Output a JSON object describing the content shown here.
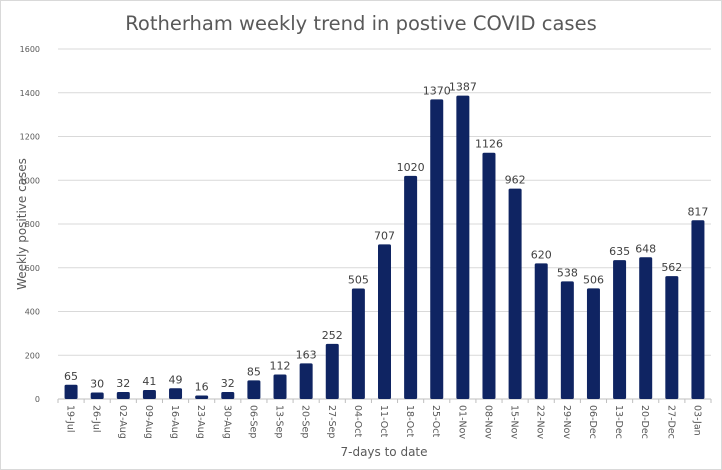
{
  "chart_data": {
    "type": "bar",
    "title": "Rotherham weekly trend in postive COVID cases",
    "xlabel": "7-days to date",
    "ylabel": "Weekly positive cases",
    "ylim": [
      0,
      1600
    ],
    "yticks": [
      0,
      200,
      400,
      600,
      800,
      1000,
      1200,
      1400,
      1600
    ],
    "grid": true,
    "legend": "none",
    "bar_color": "#0f2462",
    "categories": [
      "19-Jul",
      "26-Jul",
      "02-Aug",
      "09-Aug",
      "16-Aug",
      "23-Aug",
      "30-Aug",
      "06-Sep",
      "13-Sep",
      "20-Sep",
      "27-Sep",
      "04-Oct",
      "11-Oct",
      "18-Oct",
      "25-Oct",
      "01-Nov",
      "08-Nov",
      "15-Nov",
      "22-Nov",
      "29-Nov",
      "06-Dec",
      "13-Dec",
      "20-Dec",
      "27-Dec",
      "03-Jan"
    ],
    "values": [
      65,
      30,
      32,
      41,
      49,
      16,
      32,
      85,
      112,
      163,
      252,
      505,
      707,
      1020,
      1370,
      1387,
      1126,
      962,
      620,
      538,
      506,
      635,
      648,
      562,
      817
    ]
  }
}
